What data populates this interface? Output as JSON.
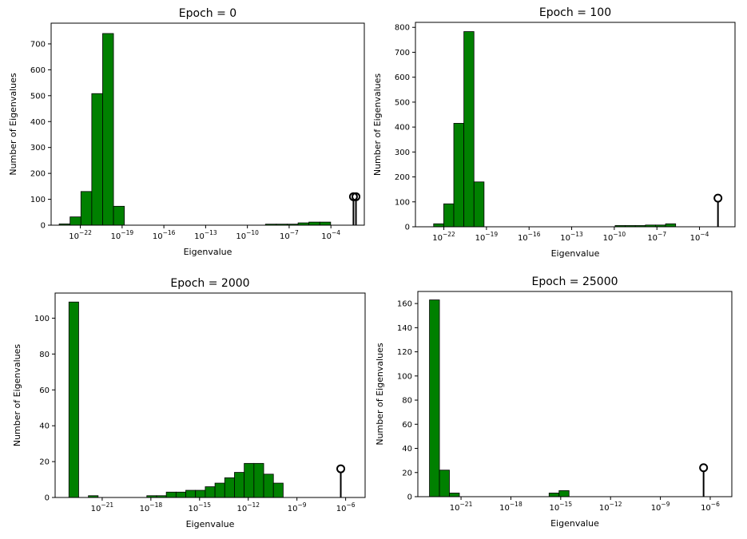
{
  "colors": {
    "bar": "#008000",
    "edge": "#000000",
    "marker": "#000000"
  },
  "chart_data": [
    {
      "type": "bar",
      "title": "Epoch = 0",
      "xlabel": "Eigenvalue",
      "ylabel": "Number of Eigenvalues",
      "xscale": "log",
      "xlim_log10": [
        -24.1,
        -1.6
      ],
      "ylim": [
        0,
        780
      ],
      "yticks": [
        0,
        100,
        200,
        300,
        400,
        500,
        600,
        700
      ],
      "xticks": [
        {
          "base": "10",
          "exp": "−22",
          "value_log10": -22
        },
        {
          "base": "10",
          "exp": "−19",
          "value_log10": -19
        },
        {
          "base": "10",
          "exp": "−16",
          "value_log10": -16
        },
        {
          "base": "10",
          "exp": "−13",
          "value_log10": -13
        },
        {
          "base": "10",
          "exp": "−10",
          "value_log10": -10
        },
        {
          "base": "10",
          "exp": "−7",
          "value_log10": -7
        },
        {
          "base": "10",
          "exp": "−4",
          "value_log10": -4
        }
      ],
      "bins_log10": {
        "start": -23.52,
        "width": 0.78
      },
      "values": [
        5,
        32,
        130,
        508,
        740,
        73,
        0,
        0,
        0,
        0,
        0,
        0,
        0,
        0,
        0,
        0,
        0,
        0,
        0,
        4,
        4,
        4,
        9,
        12,
        12,
        0,
        0,
        0
      ],
      "outliers": [
        {
          "x_log10": -2.38,
          "y": 110
        },
        {
          "x_log10": -2.2,
          "y": 110
        }
      ]
    },
    {
      "type": "bar",
      "title": "Epoch = 100",
      "xlabel": "Eigenvalue",
      "ylabel": "Number of Eigenvalues",
      "xscale": "log",
      "xlim_log10": [
        -24.0,
        -1.5
      ],
      "ylim": [
        0,
        820
      ],
      "yticks": [
        0,
        100,
        200,
        300,
        400,
        500,
        600,
        700,
        800
      ],
      "xticks": [
        {
          "base": "10",
          "exp": "−22",
          "value_log10": -22
        },
        {
          "base": "10",
          "exp": "−19",
          "value_log10": -19
        },
        {
          "base": "10",
          "exp": "−16",
          "value_log10": -16
        },
        {
          "base": "10",
          "exp": "−13",
          "value_log10": -13
        },
        {
          "base": "10",
          "exp": "−10",
          "value_log10": -10
        },
        {
          "base": "10",
          "exp": "−7",
          "value_log10": -7
        },
        {
          "base": "10",
          "exp": "−4",
          "value_log10": -4
        }
      ],
      "bins_log10": {
        "start": -22.72,
        "width": 0.71
      },
      "values": [
        12,
        92,
        415,
        783,
        180,
        0,
        0,
        0,
        0,
        0,
        0,
        0,
        0,
        0,
        0,
        0,
        0,
        0,
        5,
        5,
        5,
        7,
        7,
        12
      ],
      "outliers": [
        {
          "x_log10": -2.7,
          "y": 115
        }
      ]
    },
    {
      "type": "bar",
      "title": "Epoch = 2000",
      "xlabel": "Eigenvalue",
      "ylabel": "Number of Eigenvalues",
      "xscale": "log",
      "xlim_log10": [
        -23.9,
        -4.8
      ],
      "ylim": [
        0,
        114
      ],
      "yticks": [
        0,
        20,
        40,
        60,
        80,
        100
      ],
      "xticks": [
        {
          "base": "10",
          "exp": "−21",
          "value_log10": -21
        },
        {
          "base": "10",
          "exp": "−18",
          "value_log10": -18
        },
        {
          "base": "10",
          "exp": "−15",
          "value_log10": -15
        },
        {
          "base": "10",
          "exp": "−12",
          "value_log10": -12
        },
        {
          "base": "10",
          "exp": "−9",
          "value_log10": -9
        },
        {
          "base": "10",
          "exp": "−6",
          "value_log10": -6
        }
      ],
      "bins_log10": {
        "start": -23.05,
        "width": 0.6
      },
      "values": [
        109,
        0,
        1,
        0,
        0,
        0,
        0,
        0,
        1,
        1,
        3,
        3,
        4,
        4,
        6,
        8,
        11,
        14,
        19,
        19,
        13,
        8
      ],
      "outliers": [
        {
          "x_log10": -6.3,
          "y": 16
        }
      ]
    },
    {
      "type": "bar",
      "title": "Epoch = 25000",
      "xlabel": "Eigenvalue",
      "ylabel": "Number of Eigenvalues",
      "xscale": "log",
      "xlim_log10": [
        -23.6,
        -4.7
      ],
      "ylim": [
        0,
        170
      ],
      "yticks": [
        0,
        20,
        40,
        60,
        80,
        100,
        120,
        140,
        160
      ],
      "xticks": [
        {
          "base": "10",
          "exp": "−21",
          "value_log10": -21
        },
        {
          "base": "10",
          "exp": "−18",
          "value_log10": -18
        },
        {
          "base": "10",
          "exp": "−15",
          "value_log10": -15
        },
        {
          "base": "10",
          "exp": "−12",
          "value_log10": -12
        },
        {
          "base": "10",
          "exp": "−9",
          "value_log10": -9
        },
        {
          "base": "10",
          "exp": "−6",
          "value_log10": -6
        }
      ],
      "bins_log10": {
        "start": -22.9,
        "width": 0.6
      },
      "values": [
        163,
        22,
        3,
        0,
        0,
        0,
        0,
        0,
        0,
        0,
        0,
        0,
        3,
        5,
        0,
        0,
        0,
        0,
        0,
        0,
        0,
        0,
        0,
        0,
        0,
        0,
        0,
        0
      ],
      "outliers": [
        {
          "x_log10": -6.4,
          "y": 24
        }
      ]
    }
  ]
}
